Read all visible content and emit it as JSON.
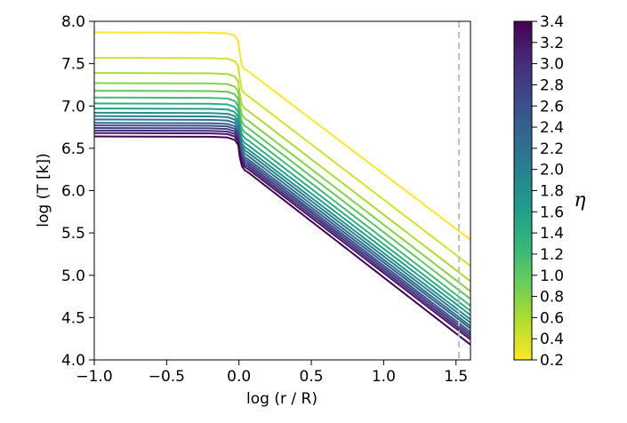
{
  "chart_data": {
    "type": "line",
    "xlabel": "log (r / R)",
    "ylabel": "log (T [k])",
    "xlim": [
      -1.0,
      1.6
    ],
    "ylim": [
      4.0,
      8.0
    ],
    "x_ticks": [
      -1.0,
      -0.5,
      0.0,
      0.5,
      1.0,
      1.5
    ],
    "x_tick_labels": [
      "−1.0",
      "−0.5",
      "0.0",
      "0.5",
      "1.0",
      "1.5"
    ],
    "y_ticks": [
      4.0,
      4.5,
      5.0,
      5.5,
      6.0,
      6.5,
      7.0,
      7.5,
      8.0
    ],
    "y_tick_labels": [
      "4.0",
      "4.5",
      "5.0",
      "5.5",
      "6.0",
      "6.5",
      "7.0",
      "7.5",
      "8.0"
    ],
    "reference_line": {
      "x": 1.52,
      "style": "dashed",
      "color": "#bbbbbb"
    },
    "colorbar": {
      "label": "η",
      "range": [
        0.2,
        3.4
      ],
      "colormap": "viridis_r",
      "ticks": [
        "0.2",
        "0.4",
        "0.6",
        "0.8",
        "1.0",
        "1.2",
        "1.4",
        "1.6",
        "1.8",
        "2.0",
        "2.2",
        "2.4",
        "2.6",
        "2.8",
        "3.0",
        "3.2",
        "3.4"
      ]
    },
    "colormap_stops": [
      "#440154",
      "#482878",
      "#3e4989",
      "#31688e",
      "#26828e",
      "#1f9e89",
      "#35b779",
      "#6ece58",
      "#b5de2b",
      "#fde725"
    ],
    "series": [
      {
        "eta": 0.2,
        "plateau": 7.87,
        "end": 5.42
      },
      {
        "eta": 0.4,
        "plateau": 7.57,
        "end": 5.11
      },
      {
        "eta": 0.6,
        "plateau": 7.39,
        "end": 4.93
      },
      {
        "eta": 0.8,
        "plateau": 7.27,
        "end": 4.81
      },
      {
        "eta": 1.0,
        "plateau": 7.18,
        "end": 4.72
      },
      {
        "eta": 1.2,
        "plateau": 7.1,
        "end": 4.64
      },
      {
        "eta": 1.4,
        "plateau": 7.03,
        "end": 4.58
      },
      {
        "eta": 1.6,
        "plateau": 6.97,
        "end": 4.53
      },
      {
        "eta": 1.8,
        "plateau": 6.92,
        "end": 4.48
      },
      {
        "eta": 2.0,
        "plateau": 6.88,
        "end": 4.44
      },
      {
        "eta": 2.2,
        "plateau": 6.84,
        "end": 4.4
      },
      {
        "eta": 2.4,
        "plateau": 6.8,
        "end": 4.37
      },
      {
        "eta": 2.6,
        "plateau": 6.77,
        "end": 4.33
      },
      {
        "eta": 2.8,
        "plateau": 6.74,
        "end": 4.3
      },
      {
        "eta": 3.0,
        "plateau": 6.71,
        "end": 4.27
      },
      {
        "eta": 3.2,
        "plateau": 6.68,
        "end": 4.24
      },
      {
        "eta": 3.4,
        "plateau": 6.64,
        "end": 4.18
      }
    ]
  }
}
